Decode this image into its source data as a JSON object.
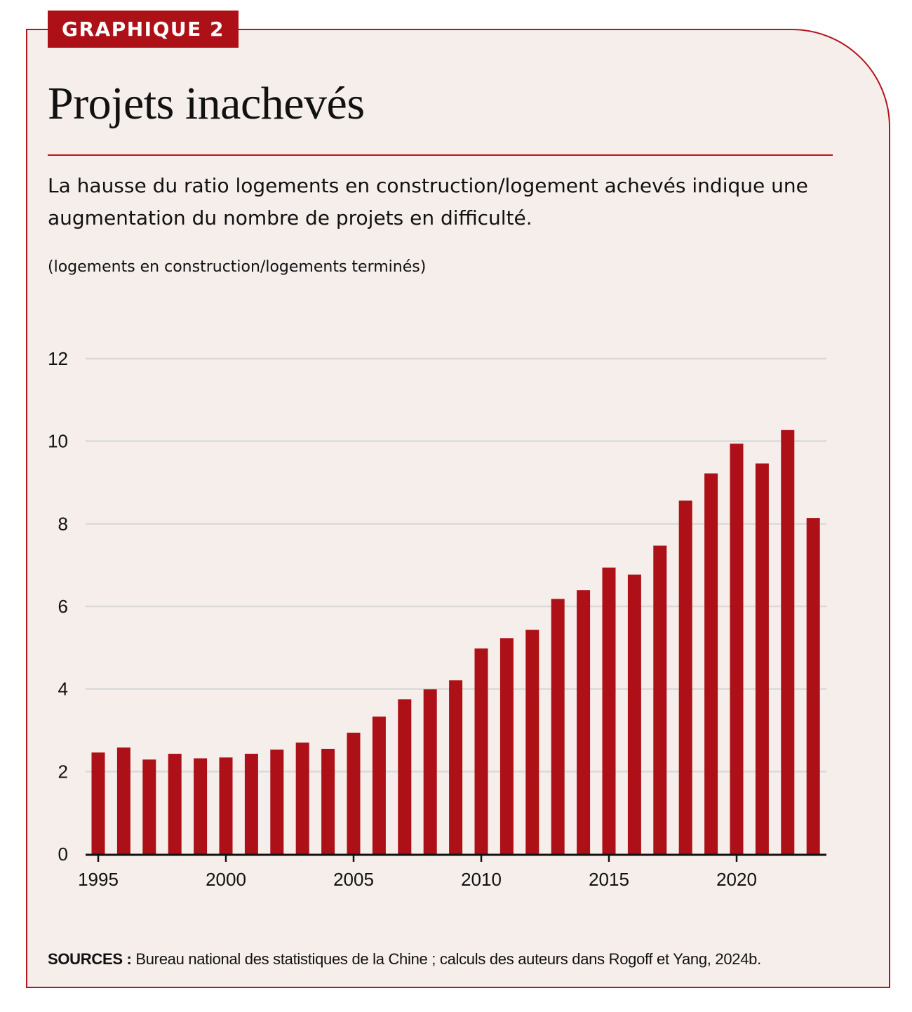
{
  "badge": "GRAPHIQUE 2",
  "title": "Projets inachevés",
  "subtitle": "La hausse du ratio logements en construction/logement achevés indique une augmentation du nombre de projets en difficulté.",
  "unit_label": "(logements en construction/logements terminés)",
  "source": {
    "label": "SOURCES :",
    "text": " Bureau national des statistiques de la Chine ; calculs des auteurs dans Rogoff et Yang, 2024b."
  },
  "colors": {
    "bar": "#ad1016",
    "frame": "#b2151b",
    "background": "#f5eeeb",
    "grid": "#d9d9d9"
  },
  "chart_data": {
    "type": "bar",
    "title": "Projets inachevés",
    "xlabel": "",
    "ylabel": "(logements en construction/logements terminés)",
    "ylim": [
      0,
      12
    ],
    "yticks": [
      0,
      2,
      4,
      6,
      8,
      10,
      12
    ],
    "xticks": [
      1995,
      2000,
      2005,
      2010,
      2015,
      2020
    ],
    "grid": true,
    "legend": "none",
    "categories": [
      1995,
      1996,
      1997,
      1998,
      1999,
      2000,
      2001,
      2002,
      2003,
      2004,
      2005,
      2006,
      2007,
      2008,
      2009,
      2010,
      2011,
      2012,
      2013,
      2014,
      2015,
      2016,
      2017,
      2018,
      2019,
      2020,
      2021,
      2022,
      2023
    ],
    "values": [
      2.46,
      2.58,
      2.29,
      2.43,
      2.32,
      2.34,
      2.43,
      2.53,
      2.7,
      2.55,
      2.94,
      3.33,
      3.75,
      3.99,
      4.21,
      4.98,
      5.23,
      5.43,
      6.18,
      6.39,
      6.94,
      6.77,
      7.47,
      8.56,
      9.22,
      9.94,
      9.46,
      10.27,
      8.14
    ]
  }
}
